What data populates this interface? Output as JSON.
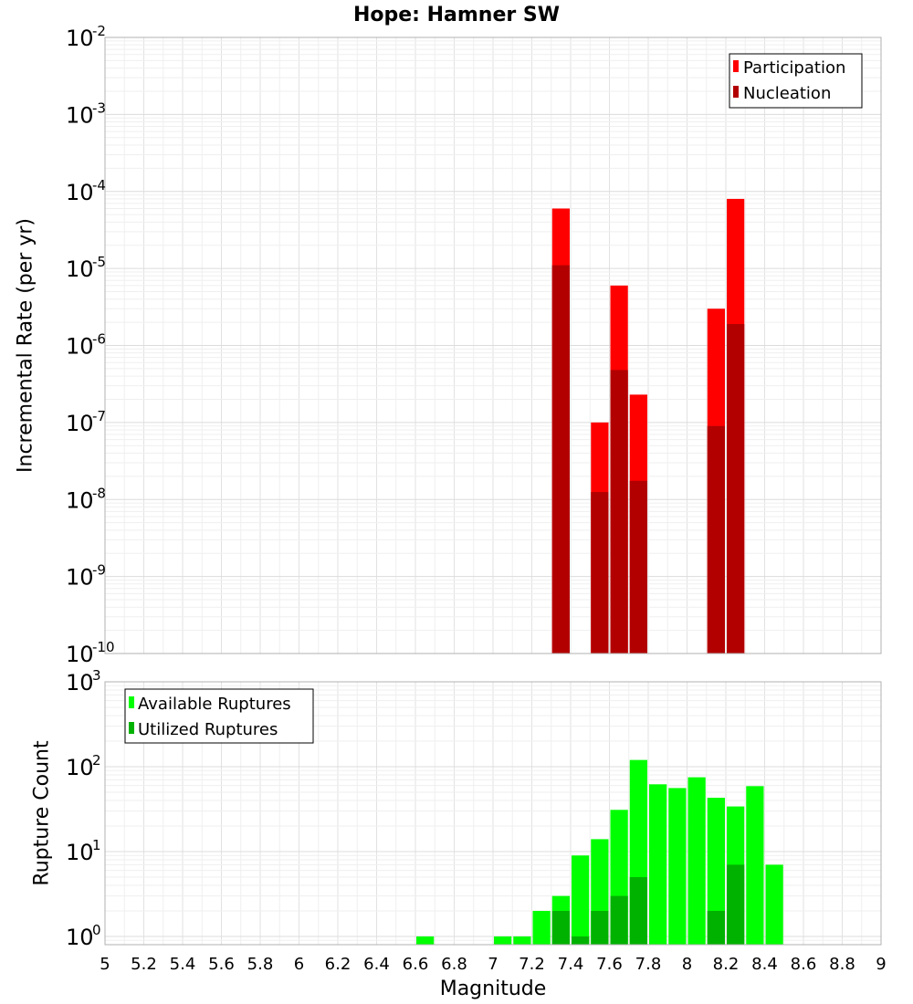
{
  "chart_data": {
    "title": "Hope: Hamner SW",
    "xlabel": "Magnitude",
    "xlim": [
      5,
      9
    ],
    "xticks": [
      "5",
      "5.2",
      "5.4",
      "5.6",
      "5.8",
      "6",
      "6.2",
      "6.4",
      "6.6",
      "6.8",
      "7",
      "7.2",
      "7.4",
      "7.6",
      "7.8",
      "8",
      "8.2",
      "8.4",
      "8.6",
      "8.8",
      "9"
    ],
    "bin_width": 0.1,
    "colors": {
      "participation": "#ff0000",
      "nucleation": "#b20000",
      "available": "#00ff00",
      "utilized": "#00b200"
    },
    "panels": [
      {
        "type": "bar",
        "ylabel": "Incremental Rate (per yr)",
        "yscale": "log",
        "ylim": [
          1e-10,
          0.01
        ],
        "ytick_exponents": [
          "-10",
          "-9",
          "-8",
          "-7",
          "-6",
          "-5",
          "-4",
          "-3",
          "-2"
        ],
        "ytick_base": "10",
        "legend": [
          "Participation",
          "Nucleation"
        ],
        "series": [
          {
            "name": "Participation",
            "x": [
              7.35,
              7.55,
              7.65,
              7.75,
              8.15,
              8.25
            ],
            "values": [
              6e-05,
              1e-07,
              6e-06,
              2.3e-07,
              3e-06,
              8e-05
            ]
          },
          {
            "name": "Nucleation",
            "x": [
              7.35,
              7.55,
              7.65,
              7.75,
              8.15,
              8.25
            ],
            "values": [
              1.1e-05,
              1.25e-08,
              4.8e-07,
              1.75e-08,
              9e-08,
              1.9e-06
            ]
          }
        ]
      },
      {
        "type": "bar",
        "ylabel": "Rupture Count",
        "yscale": "log",
        "ylim": [
          0.8,
          1000
        ],
        "ytick_exponents": [
          "0",
          "1",
          "2",
          "3"
        ],
        "ytick_base": "10",
        "legend": [
          "Available Ruptures",
          "Utilized Ruptures"
        ],
        "series": [
          {
            "name": "Available Ruptures",
            "x": [
              6.65,
              7.05,
              7.15,
              7.25,
              7.35,
              7.45,
              7.55,
              7.65,
              7.75,
              7.85,
              7.95,
              8.05,
              8.15,
              8.25,
              8.35,
              8.45
            ],
            "values": [
              1,
              1,
              1,
              2,
              3,
              9,
              14,
              31,
              120,
              62,
              56,
              75,
              43,
              34,
              59,
              7
            ]
          },
          {
            "name": "Utilized Ruptures",
            "x": [
              7.35,
              7.45,
              7.55,
              7.65,
              7.75,
              8.15,
              8.25
            ],
            "values": [
              2,
              1,
              2,
              3,
              5,
              2,
              7
            ]
          }
        ]
      }
    ]
  }
}
